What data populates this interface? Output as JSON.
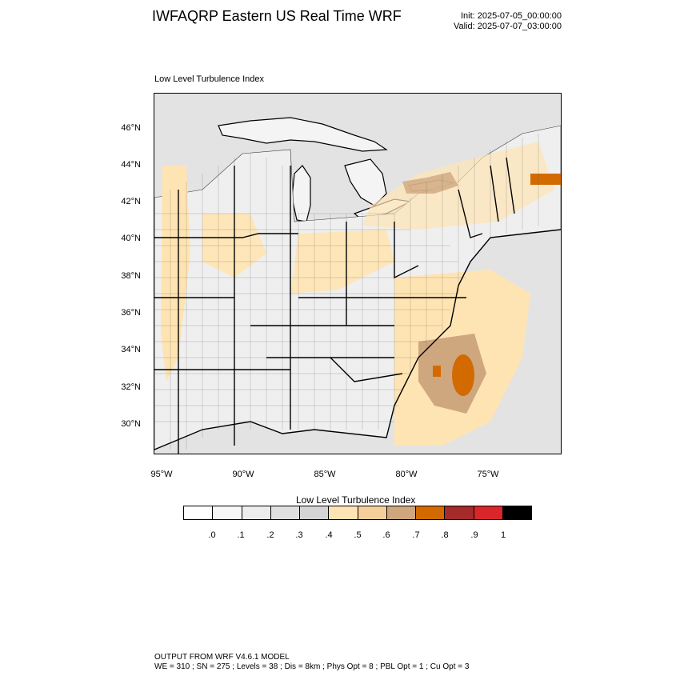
{
  "header": {
    "title": "IWFAQRP Eastern US Real Time WRF",
    "init": "Init: 2025-07-05_00:00:00",
    "valid": "Valid: 2025-07-07_03:00:00"
  },
  "map": {
    "subtitle": "Low Level Turbulence Index",
    "lat_labels": [
      "46°N",
      "44°N",
      "42°N",
      "40°N",
      "38°N",
      "36°N",
      "34°N",
      "32°N",
      "30°N"
    ],
    "lon_labels": [
      "95°W",
      "90°W",
      "85°W",
      "80°W",
      "75°W"
    ]
  },
  "colorbar": {
    "title": "Low Level Turbulence Index",
    "colors": [
      "#ffffff",
      "#f7f7f7",
      "#ededed",
      "#e0e0e0",
      "#d4d4d4",
      "#ffe4b3",
      "#f5cf9a",
      "#cfa77e",
      "#d36a00",
      "#a52a2a",
      "#d8262b",
      "#000000"
    ],
    "labels": [
      ".0",
      ".1",
      ".2",
      ".3",
      ".4",
      ".5",
      ".6",
      ".7",
      ".8",
      ".9",
      "1"
    ]
  },
  "footer": {
    "line1": "OUTPUT FROM WRF V4.6.1 MODEL",
    "line2": "WE = 310 ; SN = 275 ; Levels = 38 ; Dis = 8km ; Phys Opt = 8 ; PBL Opt = 1 ; Cu Opt = 3"
  }
}
